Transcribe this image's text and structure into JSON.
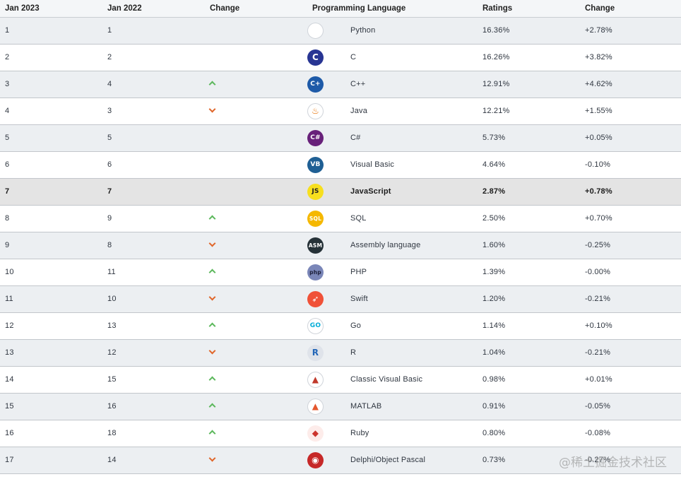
{
  "header": {
    "col_rank_2023": "Jan 2023",
    "col_rank_2022": "Jan 2022",
    "col_change": "Change",
    "col_language": "Programming Language",
    "col_ratings": "Ratings",
    "col_rating_change": "Change"
  },
  "rows": [
    {
      "rank2023": "1",
      "rank2022": "1",
      "trend": "none",
      "icon": "python-icon",
      "icon_text": "",
      "icon_bg": "#ffffff",
      "icon_fg": "#3572A5",
      "language": "Python",
      "rating": "16.36%",
      "change": "+2.78%"
    },
    {
      "rank2023": "2",
      "rank2022": "2",
      "trend": "none",
      "icon": "c-icon",
      "icon_text": "C",
      "icon_bg": "#283593",
      "icon_fg": "#ffffff",
      "language": "C",
      "rating": "16.26%",
      "change": "+3.82%"
    },
    {
      "rank2023": "3",
      "rank2022": "4",
      "trend": "up",
      "icon": "cpp-icon",
      "icon_text": "C+",
      "icon_bg": "#1e5aa8",
      "icon_fg": "#ffffff",
      "language": "C++",
      "rating": "12.91%",
      "change": "+4.62%"
    },
    {
      "rank2023": "4",
      "rank2022": "3",
      "trend": "down",
      "icon": "java-icon",
      "icon_text": "♨",
      "icon_bg": "#ffffff",
      "icon_fg": "#e76f00",
      "language": "Java",
      "rating": "12.21%",
      "change": "+1.55%"
    },
    {
      "rank2023": "5",
      "rank2022": "5",
      "trend": "none",
      "icon": "csharp-icon",
      "icon_text": "C#",
      "icon_bg": "#68217a",
      "icon_fg": "#ffffff",
      "language": "C#",
      "rating": "5.73%",
      "change": "+0.05%"
    },
    {
      "rank2023": "6",
      "rank2022": "6",
      "trend": "none",
      "icon": "visual-basic-icon",
      "icon_text": "VB",
      "icon_bg": "#1f5f94",
      "icon_fg": "#ffffff",
      "language": "Visual Basic",
      "rating": "4.64%",
      "change": "-0.10%"
    },
    {
      "rank2023": "7",
      "rank2022": "7",
      "trend": "none",
      "icon": "javascript-icon",
      "icon_text": "JS",
      "icon_bg": "#f7df1e",
      "icon_fg": "#222222",
      "language": "JavaScript",
      "rating": "2.87%",
      "change": "+0.78%",
      "highlight": true
    },
    {
      "rank2023": "8",
      "rank2022": "9",
      "trend": "up",
      "icon": "sql-icon",
      "icon_text": "SQL",
      "icon_bg": "#f5b800",
      "icon_fg": "#ffffff",
      "language": "SQL",
      "rating": "2.50%",
      "change": "+0.70%"
    },
    {
      "rank2023": "9",
      "rank2022": "8",
      "trend": "down",
      "icon": "assembly-icon",
      "icon_text": "ASM",
      "icon_bg": "#263238",
      "icon_fg": "#ffffff",
      "language": "Assembly language",
      "rating": "1.60%",
      "change": "-0.25%"
    },
    {
      "rank2023": "10",
      "rank2022": "11",
      "trend": "up",
      "icon": "php-icon",
      "icon_text": "php",
      "icon_bg": "#7a86b8",
      "icon_fg": "#1c1f3a",
      "language": "PHP",
      "rating": "1.39%",
      "change": "-0.00%"
    },
    {
      "rank2023": "11",
      "rank2022": "10",
      "trend": "down",
      "icon": "swift-icon",
      "icon_text": "➶",
      "icon_bg": "#f05138",
      "icon_fg": "#ffffff",
      "language": "Swift",
      "rating": "1.20%",
      "change": "-0.21%"
    },
    {
      "rank2023": "12",
      "rank2022": "13",
      "trend": "up",
      "icon": "go-icon",
      "icon_text": "GO",
      "icon_bg": "#ffffff",
      "icon_fg": "#00acd7",
      "language": "Go",
      "rating": "1.14%",
      "change": "+0.10%"
    },
    {
      "rank2023": "13",
      "rank2022": "12",
      "trend": "down",
      "icon": "r-icon",
      "icon_text": "R",
      "icon_bg": "#dfe3ea",
      "icon_fg": "#2266b8",
      "language": "R",
      "rating": "1.04%",
      "change": "-0.21%"
    },
    {
      "rank2023": "14",
      "rank2022": "15",
      "trend": "up",
      "icon": "classic-visual-basic-icon",
      "icon_text": "▲",
      "icon_bg": "#ffffff",
      "icon_fg": "#c0392b",
      "language": "Classic Visual Basic",
      "rating": "0.98%",
      "change": "+0.01%"
    },
    {
      "rank2023": "15",
      "rank2022": "16",
      "trend": "up",
      "icon": "matlab-icon",
      "icon_text": "▲",
      "icon_bg": "#ffffff",
      "icon_fg": "#e4572e",
      "language": "MATLAB",
      "rating": "0.91%",
      "change": "-0.05%"
    },
    {
      "rank2023": "16",
      "rank2022": "18",
      "trend": "up",
      "icon": "ruby-icon",
      "icon_text": "◆",
      "icon_bg": "#fdecea",
      "icon_fg": "#cc342d",
      "language": "Ruby",
      "rating": "0.80%",
      "change": "-0.08%"
    },
    {
      "rank2023": "17",
      "rank2022": "14",
      "trend": "down",
      "icon": "delphi-icon",
      "icon_text": "◉",
      "icon_bg": "#c62828",
      "icon_fg": "#ffffff",
      "language": "Delphi/Object Pascal",
      "rating": "0.73%",
      "change": "-0.27%"
    }
  ],
  "watermark": "@稀土掘金技术社区"
}
